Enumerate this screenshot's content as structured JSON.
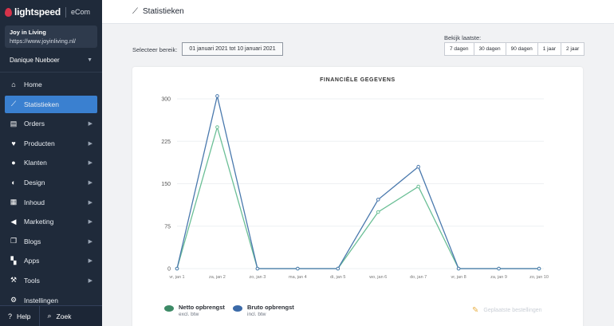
{
  "brand": {
    "name": "lightspeed",
    "product": "eCom"
  },
  "shop": {
    "name": "Joy in Living",
    "url": "https://www.joyinliving.nl/"
  },
  "user": {
    "name": "Danique Nueboer"
  },
  "nav": [
    {
      "label": "Home",
      "icon": "home-icon"
    },
    {
      "label": "Statistieken",
      "icon": "chart-icon",
      "active": true
    },
    {
      "label": "Orders",
      "icon": "orders-icon"
    },
    {
      "label": "Producten",
      "icon": "products-icon"
    },
    {
      "label": "Klanten",
      "icon": "customers-icon"
    },
    {
      "label": "Design",
      "icon": "design-icon"
    },
    {
      "label": "Inhoud",
      "icon": "content-icon"
    },
    {
      "label": "Marketing",
      "icon": "marketing-icon"
    },
    {
      "label": "Blogs",
      "icon": "blogs-icon"
    },
    {
      "label": "Apps",
      "icon": "apps-icon"
    },
    {
      "label": "Tools",
      "icon": "tools-icon"
    },
    {
      "label": "Instellingen",
      "icon": "settings-icon"
    }
  ],
  "footer": {
    "help": "Help",
    "search": "Zoek"
  },
  "page": {
    "title": "Statistieken"
  },
  "controls": {
    "range_label": "Selecteer bereik:",
    "range_value": "01 januari 2021 tot 10 januari 2021",
    "view_label": "Bekijk laatste:",
    "periods": [
      "7 dagen",
      "30 dagen",
      "90 dagen",
      "1 jaar",
      "2 jaar"
    ]
  },
  "chart_data": {
    "type": "line",
    "title": "FINANCIËLE GEGEVENS",
    "categories": [
      "vr, jan 1",
      "za, jan 2",
      "zo, jan 3",
      "ma, jan 4",
      "di, jan 5",
      "wo, jan 6",
      "do, jan 7",
      "vr, jan 8",
      "za, jan 9",
      "zo, jan 10"
    ],
    "yticks": [
      0,
      75,
      150,
      225,
      300
    ],
    "ylim": [
      0,
      300
    ],
    "grid": true,
    "series": [
      {
        "name": "Netto opbrengst",
        "sub": "excl. btw",
        "color": "#6bbf96",
        "values": [
          0,
          250,
          0,
          0,
          0,
          100,
          145,
          0,
          0,
          0
        ]
      },
      {
        "name": "Bruto opbrengst",
        "sub": "incl. btw",
        "color": "#4a79ad",
        "values": [
          0,
          305,
          0,
          0,
          0,
          122,
          180,
          0,
          0,
          0
        ]
      }
    ],
    "extra_legend": "Geplaatste bestellingen"
  }
}
